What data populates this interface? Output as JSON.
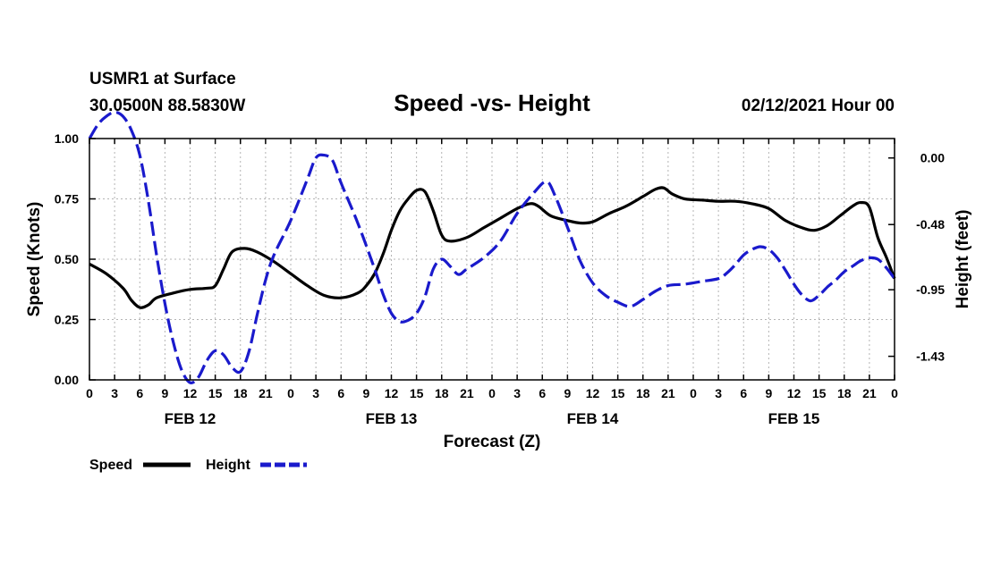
{
  "header": {
    "station": "USMR1 at Surface",
    "coords": "30.0500N 88.5830W",
    "title": "Speed -vs- Height",
    "datetime": "02/12/2021 Hour 00"
  },
  "chart_data": {
    "type": "line",
    "title": "Speed -vs- Height",
    "xlabel": "Forecast (Z)",
    "ylabel_left": "Speed (Knots)",
    "ylabel_right": "Height (feet)",
    "x_hours_range": [
      0,
      96
    ],
    "x_tick_labels": [
      "0",
      "3",
      "6",
      "9",
      "12",
      "15",
      "18",
      "21",
      "0",
      "3",
      "6",
      "9",
      "12",
      "15",
      "18",
      "21",
      "0",
      "3",
      "6",
      "9",
      "12",
      "15",
      "18",
      "21",
      "0",
      "3",
      "6",
      "9",
      "12",
      "15",
      "18",
      "21",
      "0"
    ],
    "date_labels": [
      {
        "label": "FEB 12",
        "hour": 12
      },
      {
        "label": "FEB 13",
        "hour": 36
      },
      {
        "label": "FEB 14",
        "hour": 60
      },
      {
        "label": "FEB 15",
        "hour": 84
      }
    ],
    "y_left": {
      "range": [
        0,
        1.0
      ],
      "ticks": [
        "0.00",
        "0.25",
        "0.50",
        "0.75",
        "1.00"
      ],
      "tick_values": [
        0,
        0.25,
        0.5,
        0.75,
        1.0
      ]
    },
    "y_right": {
      "range": [
        -1.6,
        0.14
      ],
      "ticks": [
        "0.00",
        "-0.48",
        "-0.95",
        "-1.43"
      ],
      "tick_values": [
        0.0,
        -0.48,
        -0.95,
        -1.43
      ]
    },
    "series": [
      {
        "name": "Speed",
        "axis": "left",
        "color": "#000000",
        "dash": "solid",
        "points": [
          [
            0,
            0.48
          ],
          [
            2,
            0.44
          ],
          [
            4,
            0.38
          ],
          [
            5,
            0.33
          ],
          [
            6,
            0.3
          ],
          [
            7,
            0.31
          ],
          [
            8,
            0.34
          ],
          [
            10,
            0.36
          ],
          [
            12,
            0.375
          ],
          [
            14,
            0.38
          ],
          [
            15,
            0.39
          ],
          [
            16,
            0.46
          ],
          [
            17,
            0.53
          ],
          [
            18.5,
            0.545
          ],
          [
            20,
            0.53
          ],
          [
            22,
            0.49
          ],
          [
            24,
            0.44
          ],
          [
            26,
            0.39
          ],
          [
            28,
            0.35
          ],
          [
            30,
            0.34
          ],
          [
            32,
            0.36
          ],
          [
            33,
            0.39
          ],
          [
            34,
            0.44
          ],
          [
            35,
            0.52
          ],
          [
            36,
            0.62
          ],
          [
            37,
            0.7
          ],
          [
            38,
            0.75
          ],
          [
            39,
            0.785
          ],
          [
            40,
            0.78
          ],
          [
            41,
            0.7
          ],
          [
            42,
            0.6
          ],
          [
            43,
            0.575
          ],
          [
            45,
            0.59
          ],
          [
            47,
            0.63
          ],
          [
            49,
            0.67
          ],
          [
            51,
            0.71
          ],
          [
            52.5,
            0.73
          ],
          [
            53.5,
            0.72
          ],
          [
            55,
            0.68
          ],
          [
            57,
            0.66
          ],
          [
            58.5,
            0.65
          ],
          [
            60,
            0.655
          ],
          [
            62,
            0.69
          ],
          [
            64,
            0.72
          ],
          [
            66,
            0.76
          ],
          [
            67.5,
            0.79
          ],
          [
            68.5,
            0.795
          ],
          [
            69.5,
            0.77
          ],
          [
            71,
            0.75
          ],
          [
            73,
            0.745
          ],
          [
            75,
            0.74
          ],
          [
            77,
            0.74
          ],
          [
            79,
            0.73
          ],
          [
            81,
            0.71
          ],
          [
            83,
            0.66
          ],
          [
            85,
            0.63
          ],
          [
            86.5,
            0.62
          ],
          [
            88,
            0.64
          ],
          [
            89.5,
            0.68
          ],
          [
            91,
            0.72
          ],
          [
            92,
            0.735
          ],
          [
            93,
            0.715
          ],
          [
            94,
            0.59
          ],
          [
            95,
            0.51
          ],
          [
            96,
            0.42
          ]
        ]
      },
      {
        "name": "Height",
        "axis": "right",
        "color": "#1a1acc",
        "dash": "dashed",
        "points": [
          [
            0,
            0.14
          ],
          [
            1,
            0.24
          ],
          [
            2,
            0.3
          ],
          [
            3,
            0.33
          ],
          [
            4,
            0.3
          ],
          [
            5,
            0.2
          ],
          [
            6,
            0.02
          ],
          [
            7,
            -0.3
          ],
          [
            8,
            -0.7
          ],
          [
            9,
            -1.05
          ],
          [
            10,
            -1.33
          ],
          [
            11,
            -1.53
          ],
          [
            12,
            -1.62
          ],
          [
            13,
            -1.58
          ],
          [
            14,
            -1.46
          ],
          [
            15,
            -1.39
          ],
          [
            16,
            -1.42
          ],
          [
            17,
            -1.51
          ],
          [
            18,
            -1.54
          ],
          [
            19,
            -1.4
          ],
          [
            20,
            -1.13
          ],
          [
            21,
            -0.88
          ],
          [
            22,
            -0.7
          ],
          [
            24,
            -0.45
          ],
          [
            26,
            -0.15
          ],
          [
            27,
            0.0
          ],
          [
            28,
            0.02
          ],
          [
            29,
            -0.02
          ],
          [
            30,
            -0.18
          ],
          [
            32,
            -0.47
          ],
          [
            34,
            -0.8
          ],
          [
            35,
            -0.98
          ],
          [
            36,
            -1.12
          ],
          [
            37,
            -1.18
          ],
          [
            38,
            -1.17
          ],
          [
            39,
            -1.12
          ],
          [
            40,
            -1.0
          ],
          [
            41,
            -0.8
          ],
          [
            42,
            -0.73
          ],
          [
            43,
            -0.78
          ],
          [
            44,
            -0.84
          ],
          [
            45,
            -0.8
          ],
          [
            47,
            -0.72
          ],
          [
            49,
            -0.6
          ],
          [
            51,
            -0.4
          ],
          [
            53,
            -0.25
          ],
          [
            54.5,
            -0.17
          ],
          [
            55.5,
            -0.27
          ],
          [
            57,
            -0.5
          ],
          [
            58.5,
            -0.74
          ],
          [
            60,
            -0.9
          ],
          [
            61.5,
            -0.99
          ],
          [
            63,
            -1.04
          ],
          [
            64.5,
            -1.07
          ],
          [
            66,
            -1.02
          ],
          [
            67.5,
            -0.96
          ],
          [
            69,
            -0.92
          ],
          [
            71,
            -0.91
          ],
          [
            73,
            -0.89
          ],
          [
            75,
            -0.87
          ],
          [
            76,
            -0.83
          ],
          [
            77,
            -0.77
          ],
          [
            78,
            -0.7
          ],
          [
            79,
            -0.66
          ],
          [
            80,
            -0.64
          ],
          [
            81,
            -0.66
          ],
          [
            82,
            -0.72
          ],
          [
            83,
            -0.81
          ],
          [
            84,
            -0.91
          ],
          [
            85,
            -0.99
          ],
          [
            86,
            -1.03
          ],
          [
            87,
            -0.99
          ],
          [
            88,
            -0.93
          ],
          [
            89,
            -0.88
          ],
          [
            90,
            -0.82
          ],
          [
            91,
            -0.78
          ],
          [
            92,
            -0.74
          ],
          [
            93,
            -0.72
          ],
          [
            94,
            -0.73
          ],
          [
            95,
            -0.79
          ],
          [
            96,
            -0.87
          ]
        ]
      }
    ]
  },
  "legend": {
    "speed_label": "Speed",
    "height_label": "Height"
  },
  "colors": {
    "speed": "#000000",
    "height": "#1a1acc",
    "grid": "#b4b4b4"
  }
}
